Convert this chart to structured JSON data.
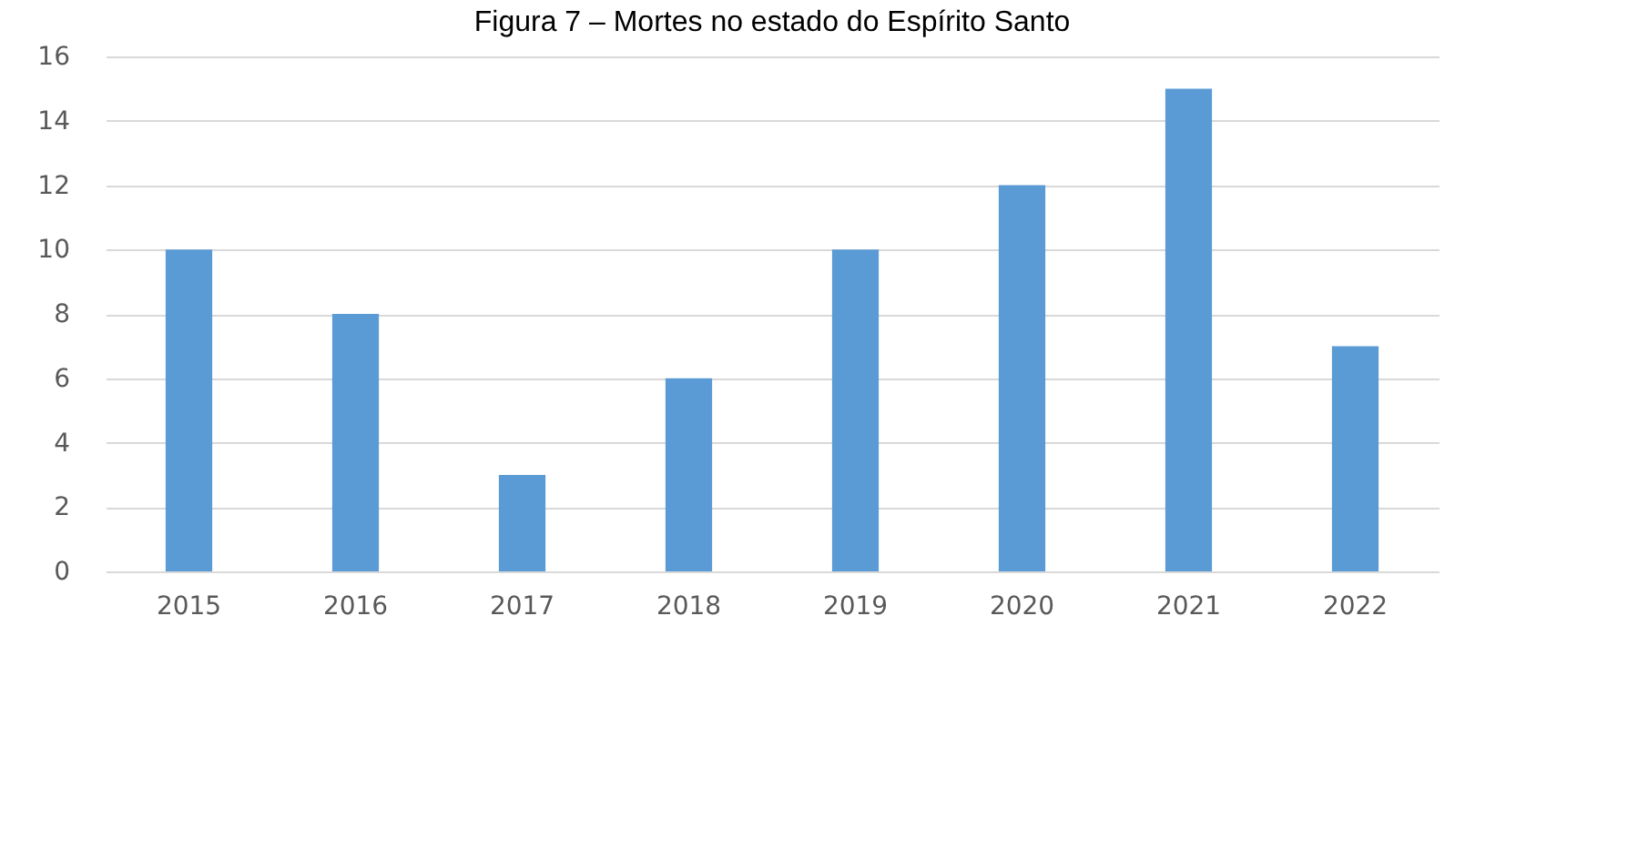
{
  "chart_data": {
    "type": "bar",
    "title": "Figura 7 – Mortes no estado do Espírito Santo",
    "categories": [
      "2015",
      "2016",
      "2017",
      "2018",
      "2019",
      "2020",
      "2021",
      "2022"
    ],
    "values": [
      10,
      8,
      3,
      6,
      10,
      12,
      15,
      7
    ],
    "color": "#5b9bd5",
    "ylim": [
      0,
      16
    ],
    "yticks": [
      0,
      2,
      4,
      6,
      8,
      10,
      12,
      14,
      16
    ],
    "grid": "y"
  }
}
